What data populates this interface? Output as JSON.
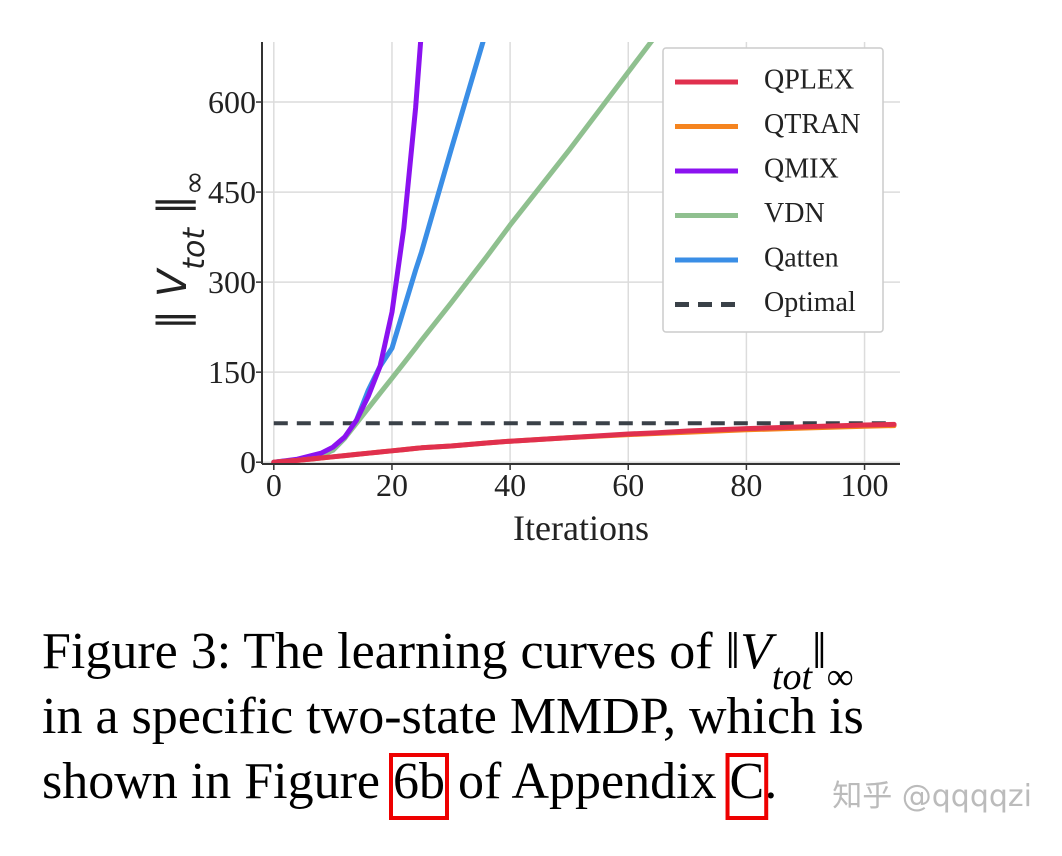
{
  "chart_data": {
    "type": "line",
    "xlabel": "Iterations",
    "ylabel": [
      "‖ ",
      "V",
      "tot",
      " ‖",
      "∞"
    ],
    "x": [
      0,
      4,
      8,
      10,
      12,
      14,
      16,
      18,
      20,
      22,
      24,
      25,
      30,
      36,
      40,
      50,
      60,
      65,
      70,
      80,
      90,
      100,
      105
    ],
    "series": [
      {
        "name": "QPLEX",
        "color": "#e0304e",
        "values": [
          0,
          3,
          7,
          9,
          11,
          13,
          15,
          17,
          19,
          21,
          23,
          24,
          27,
          32,
          35,
          41,
          47,
          49,
          52,
          56,
          59,
          62,
          63
        ]
      },
      {
        "name": "QTRAN",
        "color": "#f5841f",
        "values": [
          0,
          3,
          7,
          9,
          11,
          13,
          15,
          17,
          19,
          21,
          23,
          24,
          27,
          32,
          35,
          41,
          46,
          48,
          50,
          54,
          57,
          60,
          61
        ]
      },
      {
        "name": "QMIX",
        "color": "#8b12f0",
        "values": [
          0,
          5,
          15,
          25,
          42,
          70,
          110,
          160,
          250,
          390,
          590,
          720,
          null,
          null,
          null,
          null,
          null,
          null,
          null,
          null,
          null,
          null,
          null
        ]
      },
      {
        "name": "VDN",
        "color": "#8fc08f",
        "values": [
          0,
          4,
          12,
          20,
          40,
          65,
          90,
          115,
          140,
          165,
          190,
          203,
          265,
          342,
          395,
          520,
          650,
          715,
          null,
          null,
          null,
          null,
          null
        ]
      },
      {
        "name": "Qatten",
        "color": "#3a8ee6",
        "values": [
          0,
          4,
          12,
          20,
          40,
          70,
          120,
          160,
          190,
          255,
          320,
          350,
          520,
          720,
          null,
          null,
          null,
          null,
          null,
          null,
          null,
          null,
          null
        ]
      },
      {
        "name": "Optimal",
        "color": "#3a4148",
        "dashed": true,
        "values": [
          65,
          65,
          65,
          65,
          65,
          65,
          65,
          65,
          65,
          65,
          65,
          65,
          65,
          65,
          65,
          65,
          65,
          65,
          65,
          65,
          65,
          65,
          65
        ]
      }
    ],
    "xlim": [
      -2,
      106
    ],
    "ylim": [
      -3,
      700
    ],
    "xticks": [
      0,
      20,
      40,
      60,
      80,
      100
    ],
    "yticks": [
      0,
      150,
      300,
      450,
      600
    ],
    "grid": true,
    "legend": "upper right"
  },
  "caption": {
    "lines": [
      [
        "Figure 3: The learning curves of ",
        "‖",
        "V",
        "tot",
        "‖",
        "∞"
      ],
      [
        "in a specific two-state MMDP, which is"
      ],
      [
        "shown in Figure ",
        "6b",
        " of Appendix ",
        "C",
        "."
      ]
    ]
  },
  "watermark": "知乎 @qqqqzi"
}
